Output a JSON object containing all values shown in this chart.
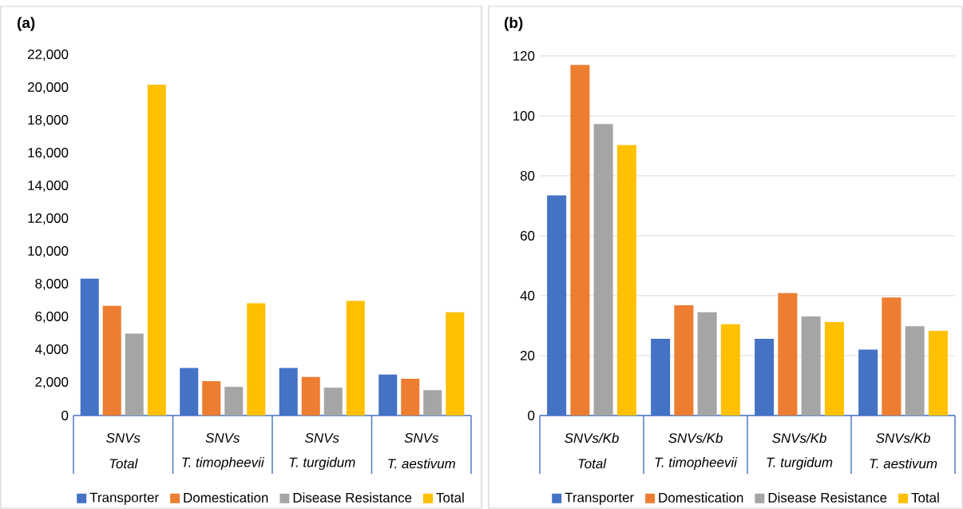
{
  "chart_data": [
    {
      "type": "bar",
      "title": "(a)",
      "categories": [
        "Total",
        "T. timopheevii",
        "T. turgidum",
        "T. aestivum"
      ],
      "annotations": [
        "SNVs",
        "SNVs",
        "SNVs",
        "SNVs"
      ],
      "series": [
        {
          "name": "Transporter",
          "color": "#4472c4",
          "values": [
            8350,
            2900,
            2900,
            2500
          ]
        },
        {
          "name": "Domestication",
          "color": "#ed7d31",
          "values": [
            6700,
            2100,
            2350,
            2250
          ]
        },
        {
          "name": "Disease Resistance",
          "color": "#a5a5a5",
          "values": [
            5000,
            1750,
            1700,
            1550
          ]
        },
        {
          "name": "Total",
          "color": "#ffc000",
          "values": [
            20200,
            6850,
            7000,
            6300
          ]
        }
      ],
      "ylim": [
        0,
        22000
      ],
      "yticks": [
        0,
        {
          "value": 2000,
          "label": "2,000"
        },
        {
          "value": 4000,
          "label": "4,000"
        },
        {
          "value": 6000,
          "label": "6,000"
        },
        {
          "value": 8000,
          "label": "8,000"
        },
        {
          "value": 10000,
          "label": "10,000"
        },
        {
          "value": 12000,
          "label": "12,000"
        },
        {
          "value": 14000,
          "label": "14,000"
        },
        {
          "value": 16000,
          "label": "16,000"
        },
        {
          "value": 18000,
          "label": "18,000"
        },
        {
          "value": 20000,
          "label": "20,000"
        },
        {
          "value": 22000,
          "label": "22,000"
        }
      ],
      "grid": false,
      "legend": "bottom"
    },
    {
      "type": "bar",
      "title": "(b)",
      "categories": [
        "Total",
        "T. timopheevii",
        "T. turgidum",
        "T. aestivum"
      ],
      "annotations": [
        "SNVs/Kb",
        "SNVs/Kb",
        "SNVs/Kb",
        "SNVs/Kb"
      ],
      "series": [
        {
          "name": "Transporter",
          "color": "#4472c4",
          "values": [
            73.5,
            25.6,
            25.6,
            22
          ]
        },
        {
          "name": "Domestication",
          "color": "#ed7d31",
          "values": [
            117,
            36.8,
            40.9,
            39.4
          ]
        },
        {
          "name": "Disease Resistance",
          "color": "#a5a5a5",
          "values": [
            97.3,
            34.5,
            33.1,
            29.8
          ]
        },
        {
          "name": "Total",
          "color": "#ffc000",
          "values": [
            90.3,
            30.5,
            31.2,
            28.3
          ]
        }
      ],
      "ylim": [
        0,
        120
      ],
      "yticks": [
        0,
        20,
        40,
        60,
        80,
        100,
        120
      ],
      "grid": "y",
      "legend": "bottom"
    }
  ]
}
